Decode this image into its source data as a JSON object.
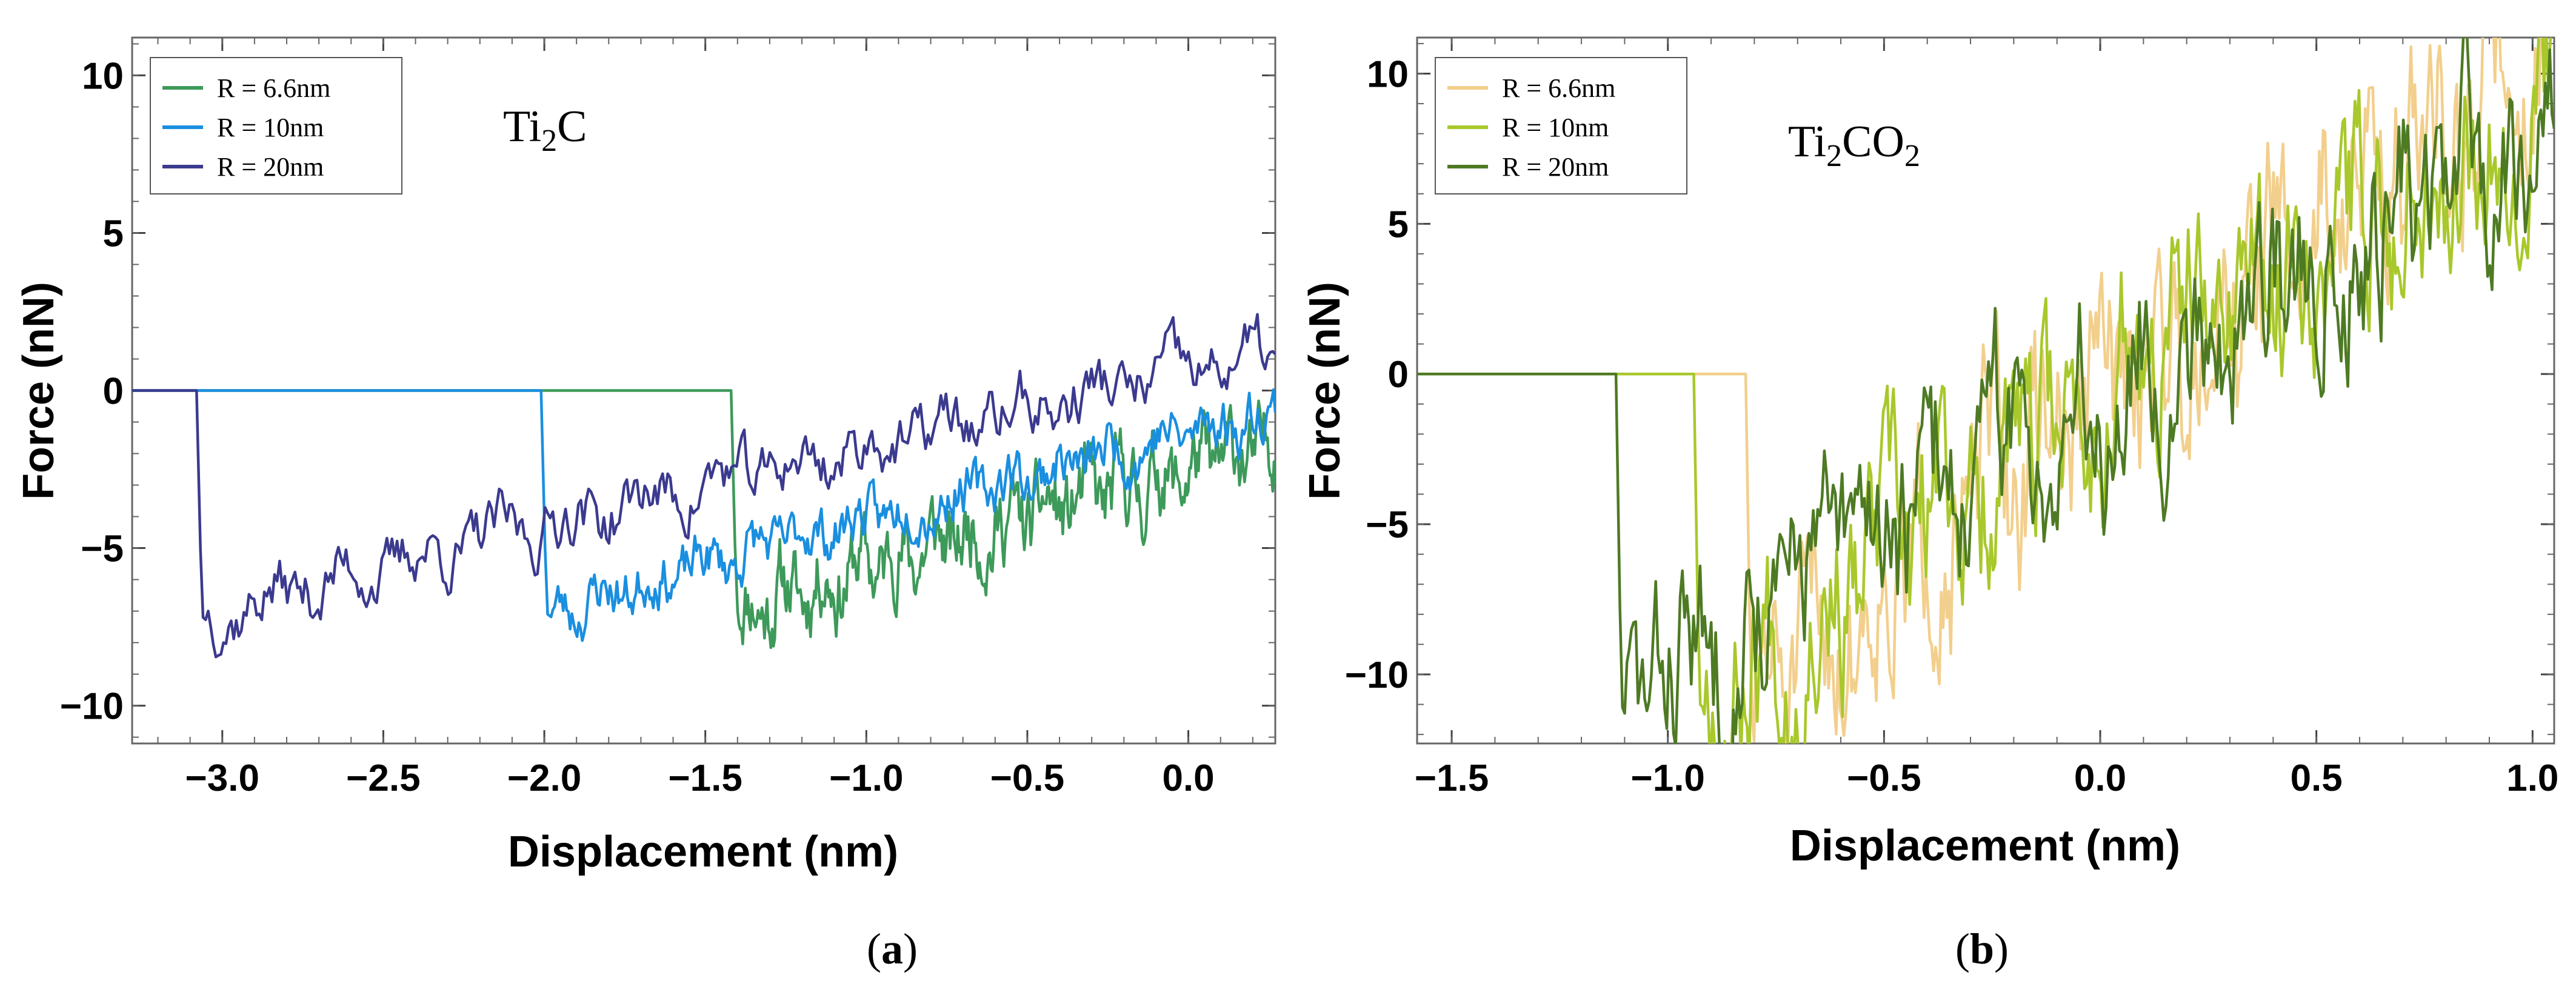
{
  "chart_data": [
    {
      "type": "line",
      "panel_label": "a",
      "annotation": {
        "main": "Ti",
        "sub": "2",
        "tail": "C"
      },
      "xlabel": "Displacement (nm)",
      "ylabel": "Force (nN)",
      "xlim": [
        -3.28,
        0.27
      ],
      "ylim": [
        -11.2,
        11.2
      ],
      "xticks": [
        -3.0,
        -2.5,
        -2.0,
        -1.5,
        -1.0,
        -0.5,
        0.0
      ],
      "xtick_labels": [
        "−3.0",
        "−2.5",
        "−2.0",
        "−1.5",
        "−1.0",
        "−0.5",
        "0.0"
      ],
      "yticks": [
        -10,
        -5,
        0,
        5,
        10
      ],
      "ytick_labels": [
        "−10",
        "−5",
        "0",
        "5",
        "10"
      ],
      "legend_position": "top-left",
      "series": [
        {
          "name": "R = 6.6nm",
          "color": "#3d9a5a",
          "snap_x": -1.42,
          "snap_min": -7.0,
          "end_x": 0.27,
          "end_y": -1.8,
          "noise": 1.2,
          "seed": 11
        },
        {
          "name": "R = 10nm",
          "color": "#1a8fe0",
          "snap_x": -2.01,
          "snap_min": -7.1,
          "end_x": 0.27,
          "end_y": -0.6,
          "noise": 0.8,
          "seed": 23
        },
        {
          "name": "R = 20nm",
          "color": "#3b3a8f",
          "snap_x": -3.08,
          "snap_min": -7.2,
          "end_x": 0.27,
          "end_y": 1.2,
          "noise": 0.9,
          "seed": 37
        }
      ]
    },
    {
      "type": "line",
      "panel_label": "b",
      "annotation": {
        "main": "Ti",
        "sub": "2",
        "tail": "CO",
        "sub2": "2"
      },
      "xlabel": "Displacement (nm)",
      "ylabel": "Force (nN)",
      "xlim": [
        -1.58,
        1.05
      ],
      "ylim": [
        -12.3,
        11.2
      ],
      "xticks": [
        -1.5,
        -1.0,
        -0.5,
        0.0,
        0.5,
        1.0
      ],
      "xtick_labels": [
        "−1.5",
        "−1.0",
        "−0.5",
        "0.0",
        "0.5",
        "1.0"
      ],
      "yticks": [
        -10,
        -5,
        0,
        5,
        10
      ],
      "ytick_labels": [
        "−10",
        "−5",
        "0",
        "5",
        "10"
      ],
      "legend_position": "top-left",
      "series": [
        {
          "name": "R = 6.6nm",
          "color": "#f2cf8c",
          "snap_x": -0.82,
          "snap_min": -11.3,
          "end_x": 1.05,
          "end_y": 11.5,
          "noise": 3.2,
          "seed": 51
        },
        {
          "name": "R = 10nm",
          "color": "#a8c82b",
          "snap_x": -0.94,
          "snap_min": -11.0,
          "end_x": 1.05,
          "end_y": 9.5,
          "noise": 3.0,
          "seed": 67
        },
        {
          "name": "R = 20nm",
          "color": "#4e7a23",
          "snap_x": -1.12,
          "snap_min": -11.1,
          "end_x": 1.05,
          "end_y": 8.5,
          "noise": 3.0,
          "seed": 83
        }
      ]
    }
  ]
}
